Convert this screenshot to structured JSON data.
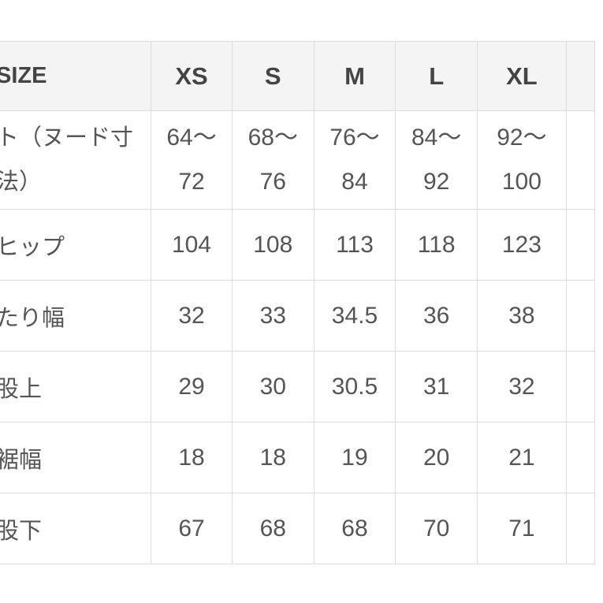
{
  "table": {
    "headers": [
      "SIZE",
      "XS",
      "S",
      "M",
      "L",
      "XL",
      ""
    ],
    "rows": [
      {
        "label": "ト（ヌード寸法）",
        "values": [
          "64〜 72",
          "68〜 76",
          "76〜 84",
          "84〜 92",
          "92〜 100",
          ""
        ]
      },
      {
        "label": "ヒップ",
        "values": [
          "104",
          "108",
          "113",
          "118",
          "123",
          ""
        ]
      },
      {
        "label": "たり幅",
        "values": [
          "32",
          "33",
          "34.5",
          "36",
          "38",
          ""
        ]
      },
      {
        "label": "股上",
        "values": [
          "29",
          "30",
          "30.5",
          "31",
          "32",
          ""
        ]
      },
      {
        "label": "裾幅",
        "values": [
          "18",
          "18",
          "19",
          "20",
          "21",
          ""
        ]
      },
      {
        "label": "股下",
        "values": [
          "67",
          "68",
          "68",
          "70",
          "71",
          ""
        ]
      }
    ]
  }
}
